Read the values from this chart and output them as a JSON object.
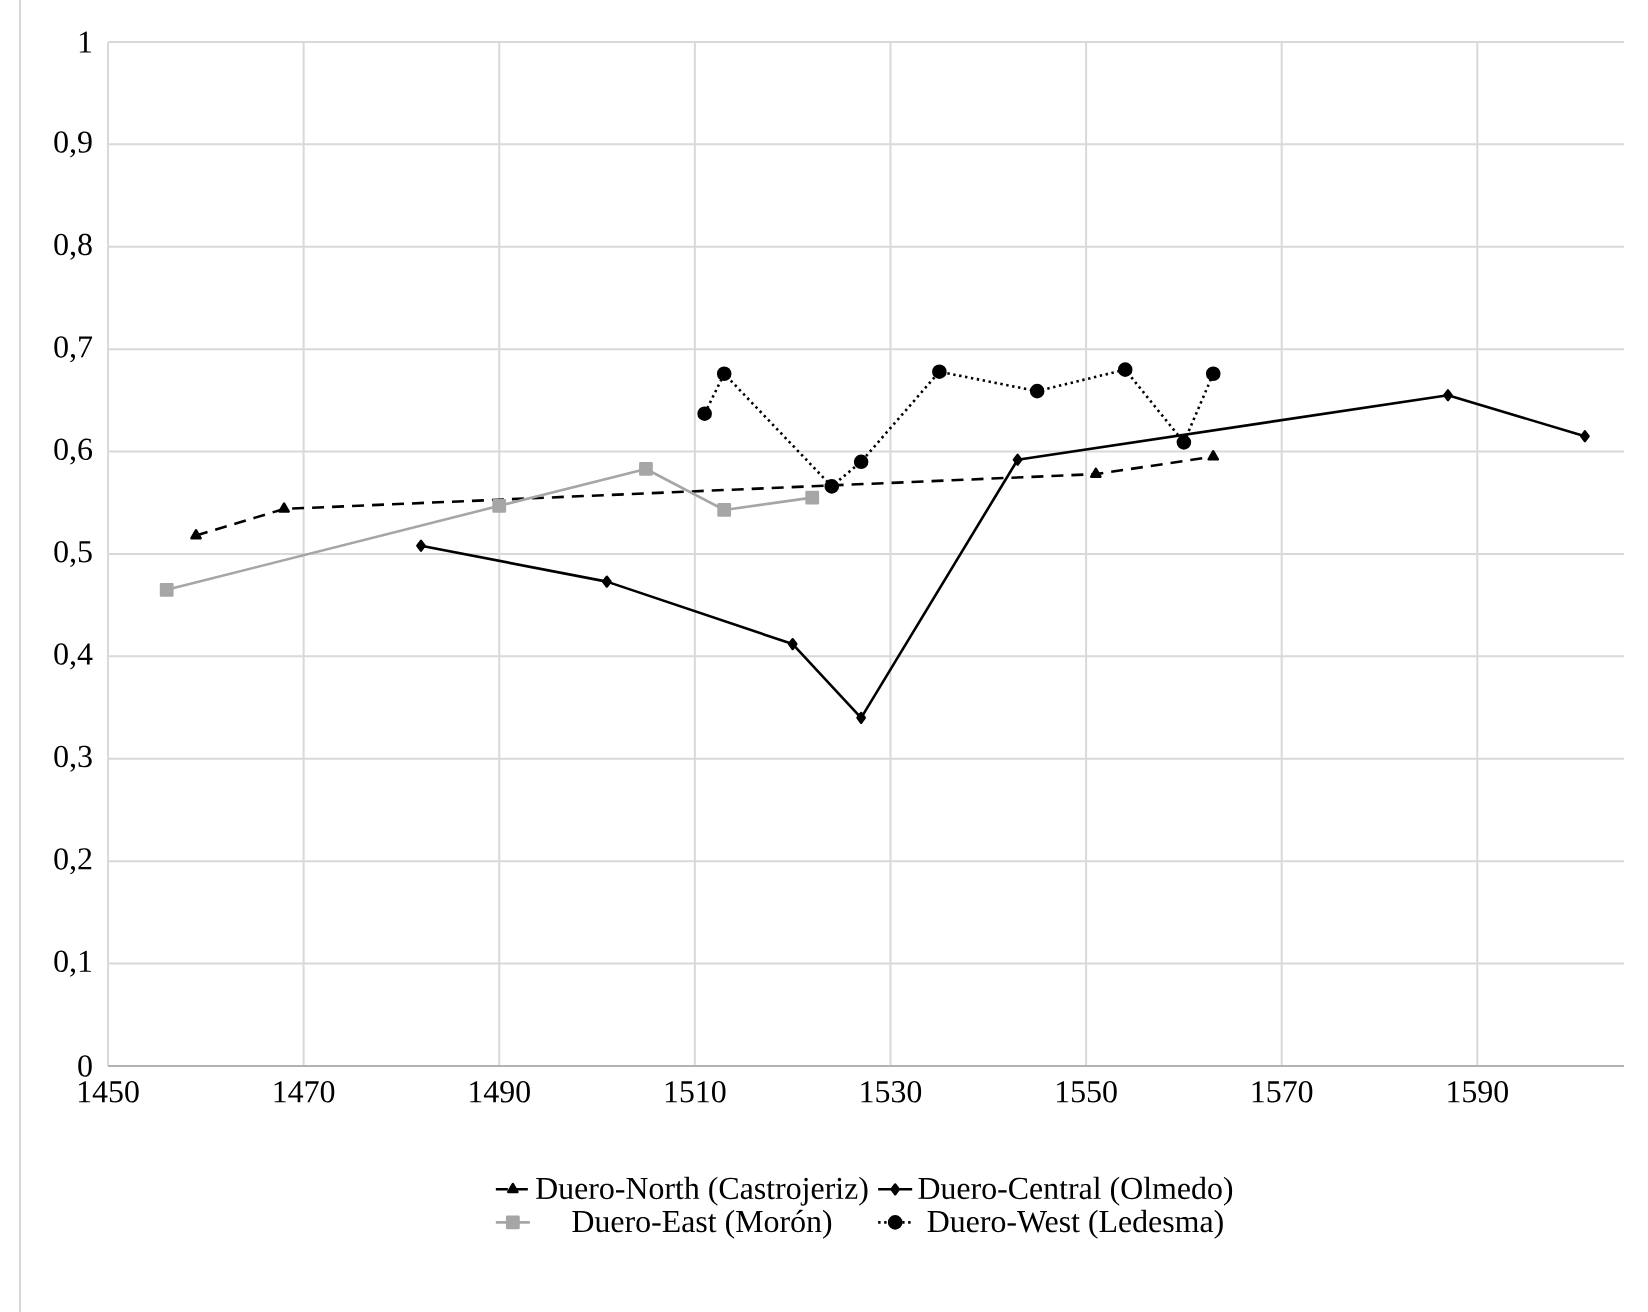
{
  "chart_data": {
    "type": "line",
    "xlim": [
      1450,
      1605
    ],
    "xticks": [
      1450,
      1470,
      1490,
      1510,
      1530,
      1550,
      1570,
      1590
    ],
    "ylim": [
      0,
      1
    ],
    "yticks": [
      0,
      {
        "value": 0.1,
        "label": "0,1"
      },
      {
        "value": 0.2,
        "label": "0,2"
      },
      {
        "value": 0.3,
        "label": "0,3"
      },
      {
        "value": 0.4,
        "label": "0,4"
      },
      {
        "value": 0.5,
        "label": "0,5"
      },
      {
        "value": 0.6,
        "label": "0,6"
      },
      {
        "value": 0.7,
        "label": "0,7"
      },
      {
        "value": 0.8,
        "label": "0,8"
      },
      {
        "value": 0.9,
        "label": "0,9"
      },
      1
    ],
    "grid": true,
    "legend": "bottom",
    "series": [
      {
        "name": "Duero-North (Castrojeriz)",
        "color": "#000000",
        "marker": "triangle",
        "line_style": "dashed",
        "x": [
          1459,
          1468,
          1551,
          1563
        ],
        "values": [
          0.518,
          0.544,
          0.578,
          0.595
        ]
      },
      {
        "name": "Duero-Central (Olmedo)",
        "color": "#000000",
        "marker": "diamond",
        "line_style": "solid",
        "x": [
          1482,
          1501,
          1520,
          1527,
          1543,
          1587,
          1601
        ],
        "values": [
          0.508,
          0.473,
          0.412,
          0.34,
          0.592,
          0.655,
          0.615
        ]
      },
      {
        "name": "Duero-East (Morón)",
        "color": "#a6a6a6",
        "marker": "square",
        "line_style": "solid",
        "x": [
          1456,
          1490,
          1505,
          1513,
          1522
        ],
        "values": [
          0.465,
          0.547,
          0.583,
          0.543,
          0.555
        ]
      },
      {
        "name": "Duero-West (Ledesma)",
        "color": "#000000",
        "marker": "circle",
        "line_style": "dotted",
        "x": [
          1511,
          1513,
          1524,
          1527,
          1535,
          1545,
          1554,
          1560,
          1563
        ],
        "values": [
          0.637,
          0.676,
          0.566,
          0.59,
          0.678,
          0.659,
          0.68,
          0.609,
          0.676
        ]
      }
    ]
  }
}
